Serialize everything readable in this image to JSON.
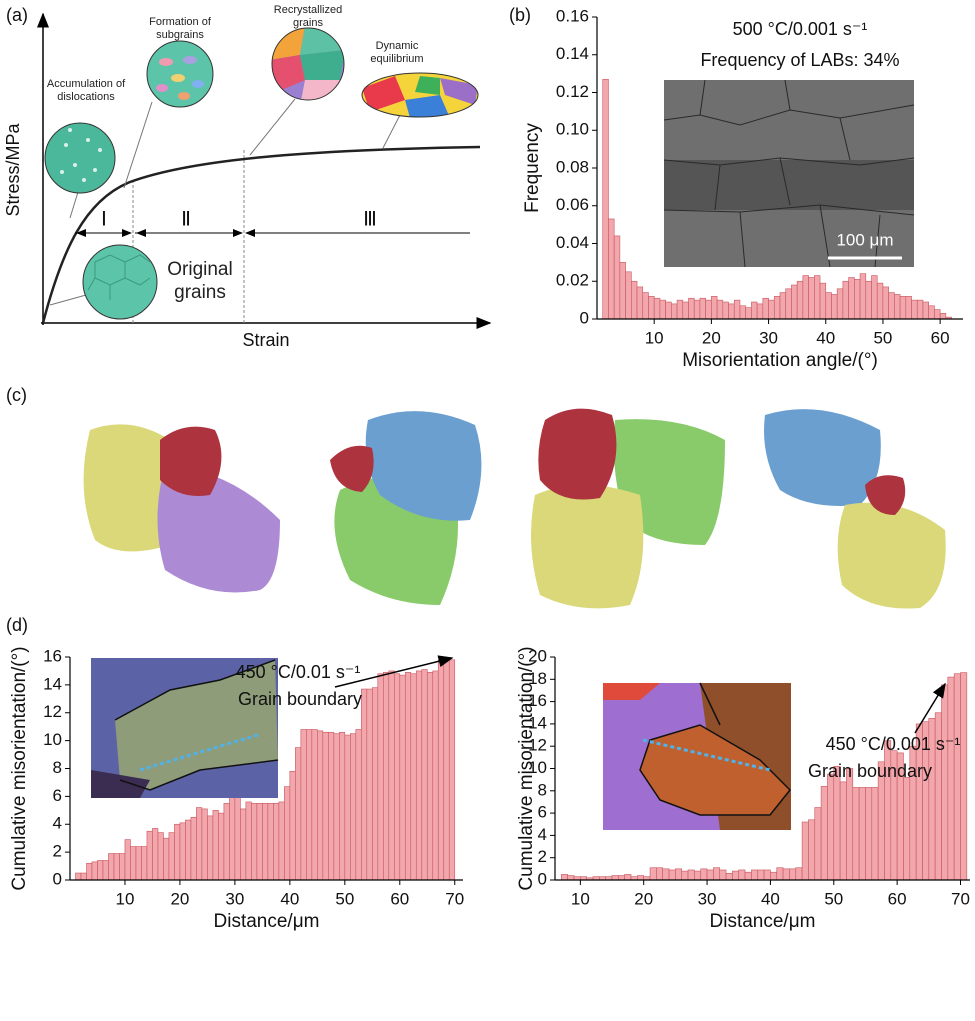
{
  "panel_labels": [
    "(a)",
    "(b)",
    "(c)",
    "(d)"
  ],
  "schematic": {
    "y_label": "Stress/MPa",
    "x_label": "Strain",
    "stages": [
      "Ⅰ",
      "Ⅱ",
      "Ⅲ"
    ],
    "annotations": [
      "Accumulation of dislocations",
      "Formation of subgrains",
      "Recrystallized grains",
      "Dynamic equilibrium"
    ],
    "original_grains": "Original grains"
  },
  "chart_data": [
    {
      "type": "histogram",
      "xlabel": "Misorientation angle/(°)",
      "ylabel": "Frequency",
      "color": "#f1a7ab",
      "edge_color": "#c9555f",
      "annotations": [
        "500 °C/0.001 s⁻¹",
        "Frequency of LABs: 34%"
      ],
      "scale_bar": "100 μm",
      "bins": [
        1,
        2,
        3,
        4,
        5,
        6,
        7,
        8,
        9,
        10,
        11,
        12,
        13,
        14,
        15,
        16,
        17,
        18,
        19,
        20,
        21,
        22,
        23,
        24,
        25,
        26,
        27,
        28,
        29,
        30,
        31,
        32,
        33,
        34,
        35,
        36,
        37,
        38,
        39,
        40,
        41,
        42,
        43,
        44,
        45,
        46,
        47,
        48,
        49,
        50,
        51,
        52,
        53,
        54,
        55,
        56,
        57,
        58,
        59,
        60,
        61,
        62
      ],
      "values": [
        0.127,
        0.053,
        0.044,
        0.03,
        0.025,
        0.02,
        0.017,
        0.014,
        0.012,
        0.011,
        0.01,
        0.009,
        0.008,
        0.01,
        0.009,
        0.011,
        0.01,
        0.011,
        0.01,
        0.012,
        0.01,
        0.009,
        0.008,
        0.01,
        0.007,
        0.006,
        0.009,
        0.008,
        0.011,
        0.01,
        0.012,
        0.014,
        0.016,
        0.018,
        0.02,
        0.023,
        0.022,
        0.023,
        0.019,
        0.014,
        0.013,
        0.016,
        0.02,
        0.022,
        0.021,
        0.024,
        0.02,
        0.023,
        0.019,
        0.017,
        0.014,
        0.013,
        0.012,
        0.012,
        0.01,
        0.01,
        0.009,
        0.007,
        0.005,
        0.003,
        0.001
      ],
      "xlim": [
        0,
        64
      ],
      "ylim": [
        0,
        0.16
      ],
      "xticks": [
        10,
        20,
        30,
        40,
        50,
        60
      ],
      "yticks": [
        0,
        0.02,
        0.04,
        0.06,
        0.08,
        {
          "value": 0.1,
          "label": "0.10"
        },
        0.12,
        0.14,
        0.16
      ]
    },
    {
      "type": "histogram",
      "xlabel": "Distance/μm",
      "ylabel": "Cumulative misorientation/(°)",
      "color": "#f1a7ab",
      "edge_color": "#c9555f",
      "annotations": [
        "450 °C/0.01 s⁻¹",
        "Grain boundary"
      ],
      "bins": [
        1,
        2,
        3,
        4,
        5,
        6,
        7,
        8,
        9,
        10,
        11,
        12,
        13,
        14,
        15,
        16,
        17,
        18,
        19,
        20,
        21,
        22,
        23,
        24,
        25,
        26,
        27,
        28,
        29,
        30,
        31,
        32,
        33,
        34,
        35,
        36,
        37,
        38,
        39,
        40,
        41,
        42,
        43,
        44,
        45,
        46,
        47,
        48,
        49,
        50,
        51,
        52,
        53,
        54,
        55,
        56,
        57,
        58,
        59,
        60,
        61,
        62,
        63,
        64,
        65,
        66,
        67,
        68,
        69,
        70
      ],
      "values": [
        0.5,
        0.5,
        1.2,
        1.3,
        1.4,
        1.4,
        1.9,
        1.9,
        1.9,
        2.9,
        2.4,
        2.4,
        2.4,
        3.5,
        3.7,
        3.4,
        3.0,
        3.4,
        4.0,
        4.1,
        4.3,
        4.5,
        5.2,
        5.1,
        4.6,
        5.0,
        4.8,
        5.5,
        6.2,
        6.1,
        5.1,
        5.6,
        5.5,
        5.5,
        5.5,
        5.5,
        5.5,
        5.6,
        6.7,
        7.8,
        9.5,
        10.8,
        10.8,
        10.8,
        10.7,
        10.6,
        10.6,
        10.5,
        10.6,
        10.4,
        10.5,
        10.8,
        13.7,
        13.7,
        13.8,
        14.8,
        14.9,
        15.0,
        14.8,
        14.7,
        14.9,
        14.8,
        15.0,
        15.1,
        14.9,
        15.0,
        15.8,
        15.8,
        15.8
      ],
      "xlim": [
        0,
        71.5
      ],
      "ylim": [
        0,
        16
      ],
      "xticks": [
        10,
        20,
        30,
        40,
        50,
        60,
        70
      ],
      "yticks": [
        0,
        2,
        4,
        6,
        8,
        10,
        12,
        14,
        16
      ]
    },
    {
      "type": "histogram",
      "xlabel": "Distance/μm",
      "ylabel": "Cumulative misorientation/(°)",
      "color": "#f1a7ab",
      "edge_color": "#c9555f",
      "annotations": [
        "450 °C/0.001 s⁻¹",
        "Grain boundary"
      ],
      "bins": [
        7,
        8,
        9,
        10,
        11,
        12,
        13,
        14,
        15,
        16,
        17,
        18,
        19,
        20,
        21,
        22,
        23,
        24,
        25,
        26,
        27,
        28,
        29,
        30,
        31,
        32,
        33,
        34,
        35,
        36,
        37,
        38,
        39,
        40,
        41,
        42,
        43,
        44,
        45,
        46,
        47,
        48,
        49,
        50,
        51,
        52,
        53,
        54,
        55,
        56,
        57,
        58,
        59,
        60,
        61,
        62,
        63,
        64,
        65,
        66,
        67,
        68,
        69,
        70,
        71
      ],
      "values": [
        0.5,
        0.4,
        0.3,
        0.3,
        0.2,
        0.3,
        0.3,
        0.3,
        0.4,
        0.4,
        0.5,
        0.3,
        0.4,
        0.3,
        1.1,
        1.1,
        1.0,
        0.9,
        1.0,
        0.8,
        0.9,
        0.8,
        1.0,
        0.9,
        1.1,
        0.9,
        0.6,
        0.8,
        0.9,
        0.7,
        0.9,
        0.9,
        0.9,
        0.7,
        1.1,
        1.0,
        1.0,
        1.1,
        5.2,
        5.4,
        6.5,
        8.4,
        9.5,
        10.2,
        8.8,
        10.0,
        8.3,
        8.3,
        8.3,
        8.3,
        10.6,
        12.5,
        11.6,
        11.4,
        9.2,
        12.0,
        14.0,
        14.2,
        14.5,
        15.0,
        17.5,
        18.2,
        18.5,
        18.6
      ],
      "xlim": [
        6,
        71.5
      ],
      "ylim": [
        0,
        20
      ],
      "xticks": [
        10,
        20,
        30,
        40,
        50,
        60,
        70
      ],
      "yticks": [
        0,
        2,
        4,
        6,
        8,
        10,
        12,
        14,
        16,
        18,
        20
      ]
    }
  ]
}
